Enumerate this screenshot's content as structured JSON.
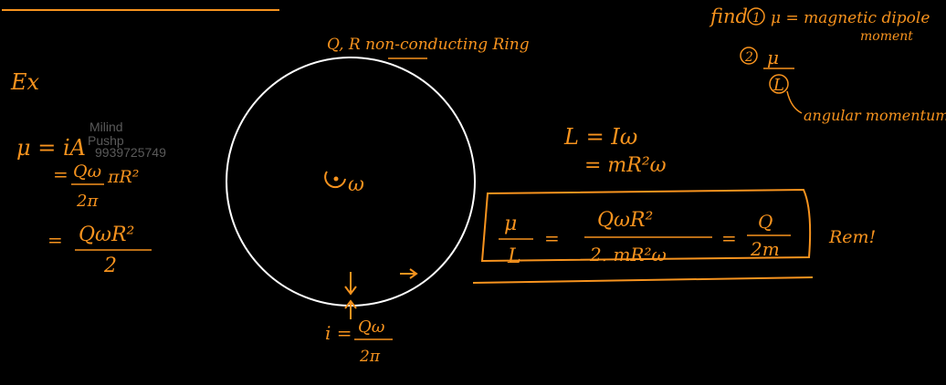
{
  "colors": {
    "background": "#000000",
    "ink_orange": "#f7931e",
    "ink_white": "#ffffff",
    "watermark": "#5a5a5a"
  },
  "watermark": {
    "line1": "Milind",
    "line2": "Pushp",
    "line3": "9939725749"
  },
  "example_label": "Ex",
  "problem": {
    "ring_label": "Q, R non-conducting Ring",
    "find": "find",
    "item1_marker": "1",
    "item1_text": "μ = magnetic dipole",
    "item1_text_cont": "moment",
    "item2_marker": "2",
    "item2_num": "μ",
    "item2_den": "L",
    "item2_den_note": "angular momentum"
  },
  "left_derivation": {
    "line1": "μ = iA",
    "line2_num": "Qω",
    "line2_rest": "πR²",
    "line2_den": "2π",
    "line3_num": "QωR²",
    "line3_den": "2"
  },
  "ring": {
    "center_label": "ω",
    "current_num": "Qω",
    "current_den": "2π",
    "current_prefix": "i ="
  },
  "right_derivation": {
    "line1": "L = Iω",
    "line2": "= mR²ω"
  },
  "boxed_result": {
    "lhs_num": "μ",
    "lhs_den": "L",
    "mid_num": "QωR²",
    "mid_den": "2. mR²ω",
    "rhs_num": "Q",
    "rhs_den": "2m",
    "note": "Rem!"
  }
}
